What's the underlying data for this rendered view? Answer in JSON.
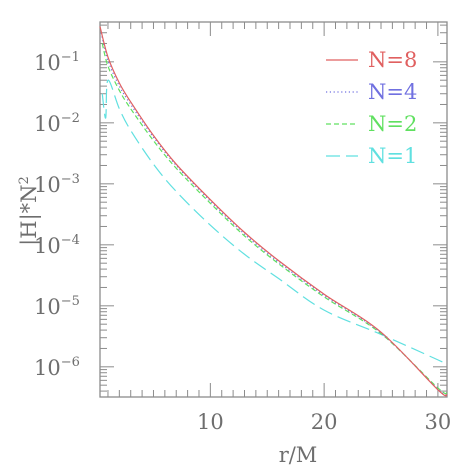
{
  "chart_data": {
    "type": "line",
    "xlabel": "r/M",
    "ylabel_html": "|H|*N²",
    "ylabel": "|H|*N",
    "ylabel_sup": "2",
    "xlim": [
      0.3,
      30.8
    ],
    "ylim": [
      3.2e-07,
      0.45
    ],
    "yscale": "log",
    "x_ticks": [
      10,
      20,
      30
    ],
    "x_tick_labels": [
      "10",
      "20",
      "30"
    ],
    "y_ticks": [
      0.1,
      0.01,
      0.001,
      0.0001,
      1e-05,
      1e-06
    ],
    "y_tick_labels": [
      {
        "base": "10",
        "exp": "−1"
      },
      {
        "base": "10",
        "exp": "−2"
      },
      {
        "base": "10",
        "exp": "−3"
      },
      {
        "base": "10",
        "exp": "−4"
      },
      {
        "base": "10",
        "exp": "−5"
      },
      {
        "base": "10",
        "exp": "−6"
      }
    ],
    "legend_position": "top-right",
    "series": [
      {
        "name": "N=8",
        "color": "#e06060",
        "dash": "solid",
        "x": [
          0.3,
          1,
          2,
          3,
          5,
          7,
          10,
          13,
          16,
          20,
          25,
          30,
          30.8
        ],
        "y": [
          0.38,
          0.12,
          0.045,
          0.022,
          0.0062,
          0.0021,
          0.00055,
          0.00016,
          5.5e-05,
          1.55e-05,
          3.7e-06,
          4.2e-07,
          3.5e-07
        ]
      },
      {
        "name": "N=4",
        "color": "#7070e0",
        "dash": "dotted",
        "x": [
          0.4,
          1,
          2,
          3,
          5,
          7,
          10,
          13,
          16,
          20,
          25,
          30,
          30.8
        ],
        "y": [
          0.3,
          0.105,
          0.04,
          0.02,
          0.0058,
          0.002,
          0.00052,
          0.00015,
          5.2e-05,
          1.48e-05,
          3.6e-06,
          4.3e-07,
          3.6e-07
        ]
      },
      {
        "name": "N=2",
        "color": "#60e060",
        "dash": "dashed",
        "x": [
          0.5,
          1,
          2,
          3,
          5,
          7,
          10,
          13,
          16,
          20,
          25,
          30,
          30.8
        ],
        "y": [
          0.2,
          0.085,
          0.034,
          0.017,
          0.0051,
          0.0018,
          0.00048,
          0.00014,
          4.9e-05,
          1.4e-05,
          3.5e-06,
          4.5e-07,
          3.8e-07
        ]
      },
      {
        "name": "N=1",
        "color": "#60e0e0",
        "dash": "longdash",
        "x": [
          0.5,
          0.8,
          1,
          2,
          3,
          5,
          7,
          10,
          13,
          16,
          20,
          25,
          30,
          30.8
        ],
        "y": [
          0.03,
          0.012,
          0.05,
          0.017,
          0.0075,
          0.0021,
          0.00075,
          0.00021,
          7e-05,
          2.8e-05,
          8.5e-06,
          3.4e-06,
          1.3e-06,
          1.1e-06
        ]
      }
    ]
  }
}
